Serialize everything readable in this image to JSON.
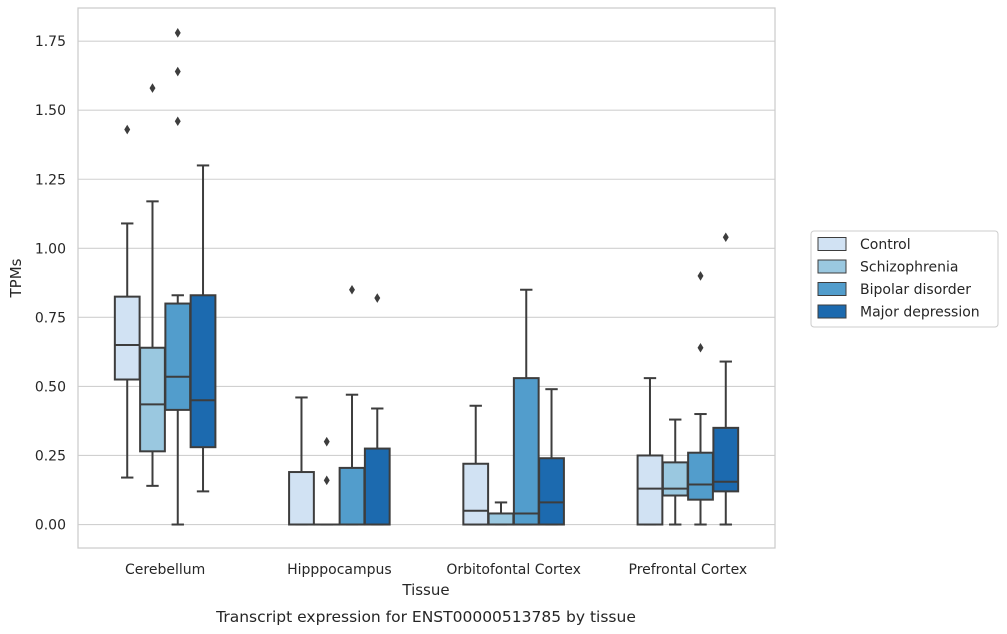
{
  "chart_data": {
    "type": "boxplot",
    "xlabel": "Tissue",
    "ylabel": "TPMs",
    "caption": "Transcript expression for ENST00000513785 by tissue",
    "ylim": [
      -0.085,
      1.87
    ],
    "yticks": [
      "0.00",
      "0.25",
      "0.50",
      "0.75",
      "1.00",
      "1.25",
      "1.50",
      "1.75"
    ],
    "grid": "horizontal",
    "legend_position": "right",
    "categories": [
      "Cerebellum",
      "Hipppocampus",
      "Orbitofontal Cortex",
      "Prefrontal Cortex"
    ],
    "series": [
      {
        "name": "Control",
        "color": "#d1e2f3",
        "boxes": [
          {
            "whislo": 0.17,
            "q1": 0.525,
            "med": 0.65,
            "q3": 0.825,
            "whishi": 1.09,
            "fliers": [
              1.43
            ]
          },
          {
            "whislo": 0.0,
            "q1": 0.0,
            "med": 0.0,
            "q3": 0.19,
            "whishi": 0.46,
            "fliers": []
          },
          {
            "whislo": 0.0,
            "q1": 0.0,
            "med": 0.05,
            "q3": 0.22,
            "whishi": 0.43,
            "fliers": []
          },
          {
            "whislo": 0.0,
            "q1": 0.0,
            "med": 0.13,
            "q3": 0.25,
            "whishi": 0.53,
            "fliers": []
          }
        ]
      },
      {
        "name": "Schizophrenia",
        "color": "#9ac8e0",
        "boxes": [
          {
            "whislo": 0.14,
            "q1": 0.265,
            "med": 0.435,
            "q3": 0.64,
            "whishi": 1.17,
            "fliers": [
              1.58
            ]
          },
          {
            "whislo": 0.0,
            "q1": 0.0,
            "med": 0.0,
            "q3": 0.0,
            "whishi": 0.0,
            "fliers": [
              0.16,
              0.3
            ]
          },
          {
            "whislo": 0.0,
            "q1": 0.0,
            "med": 0.0,
            "q3": 0.04,
            "whishi": 0.08,
            "fliers": []
          },
          {
            "whislo": 0.0,
            "q1": 0.105,
            "med": 0.13,
            "q3": 0.225,
            "whishi": 0.38,
            "fliers": []
          }
        ]
      },
      {
        "name": "Bipolar disorder",
        "color": "#529dcc",
        "boxes": [
          {
            "whislo": 0.0,
            "q1": 0.415,
            "med": 0.535,
            "q3": 0.8,
            "whishi": 0.83,
            "fliers": [
              1.46,
              1.64,
              1.78
            ]
          },
          {
            "whislo": 0.0,
            "q1": 0.0,
            "med": 0.0,
            "q3": 0.205,
            "whishi": 0.47,
            "fliers": [
              0.85
            ]
          },
          {
            "whislo": 0.0,
            "q1": 0.0,
            "med": 0.04,
            "q3": 0.53,
            "whishi": 0.85,
            "fliers": []
          },
          {
            "whislo": 0.0,
            "q1": 0.09,
            "med": 0.145,
            "q3": 0.26,
            "whishi": 0.4,
            "fliers": [
              0.64,
              0.9
            ]
          }
        ]
      },
      {
        "name": "Major depression",
        "color": "#1c6aaf",
        "boxes": [
          {
            "whislo": 0.12,
            "q1": 0.28,
            "med": 0.45,
            "q3": 0.83,
            "whishi": 1.3,
            "fliers": []
          },
          {
            "whislo": 0.0,
            "q1": 0.0,
            "med": 0.0,
            "q3": 0.275,
            "whishi": 0.42,
            "fliers": [
              0.82
            ]
          },
          {
            "whislo": 0.0,
            "q1": 0.0,
            "med": 0.08,
            "q3": 0.24,
            "whishi": 0.49,
            "fliers": []
          },
          {
            "whislo": 0.0,
            "q1": 0.12,
            "med": 0.155,
            "q3": 0.35,
            "whishi": 0.59,
            "fliers": [
              1.04
            ]
          }
        ]
      }
    ]
  }
}
